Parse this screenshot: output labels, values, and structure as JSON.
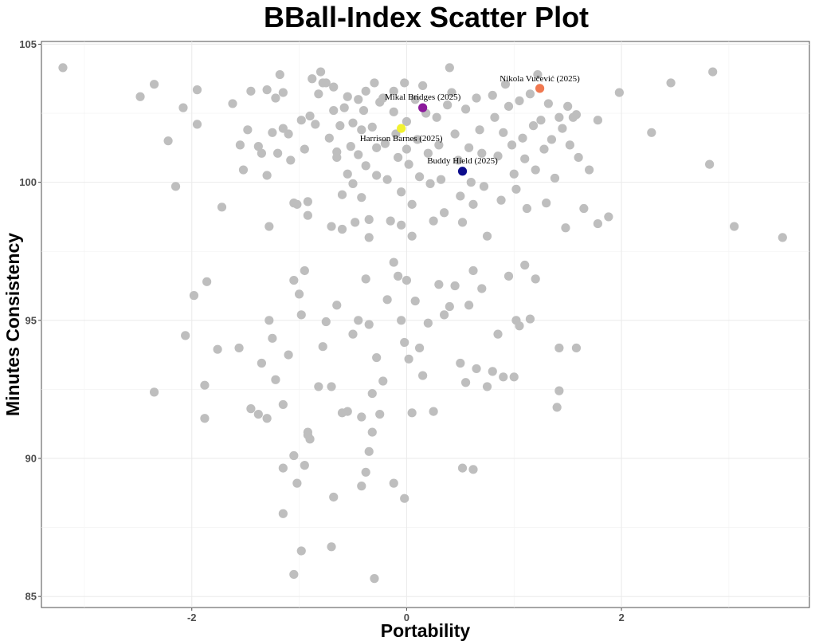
{
  "chart_data": {
    "type": "scatter",
    "title": "BBall-Index Scatter Plot",
    "xlabel": "Portability",
    "ylabel": "Minutes Consistency",
    "xlim": [
      -3.4,
      3.75
    ],
    "ylim": [
      84.6,
      105.1
    ],
    "xticks": [
      -2,
      0,
      2
    ],
    "yticks": [
      85,
      90,
      95,
      100,
      105
    ],
    "grid": true,
    "legend": "none",
    "highlighted": [
      {
        "label": "Nikola Vučević (2025)",
        "x": 1.24,
        "y": 103.4,
        "color": "#f07850"
      },
      {
        "label": "Mikal Bridges (2025)",
        "x": 0.15,
        "y": 102.7,
        "color": "#8b1a9b"
      },
      {
        "label": "Harrison Barnes (2025)",
        "x": -0.05,
        "y": 101.95,
        "color": "#f2f230"
      },
      {
        "label": "Buddy Hield (2025)",
        "x": 0.52,
        "y": 100.4,
        "color": "#0d0d8c"
      }
    ],
    "points": [
      [
        -3.2,
        104.15
      ],
      [
        -2.48,
        103.1
      ],
      [
        -2.35,
        103.55
      ],
      [
        -2.22,
        101.5
      ],
      [
        -2.15,
        99.85
      ],
      [
        -2.08,
        102.7
      ],
      [
        -1.95,
        103.35
      ],
      [
        -1.95,
        102.1
      ],
      [
        -1.72,
        99.1
      ],
      [
        -1.62,
        102.85
      ],
      [
        -1.55,
        101.35
      ],
      [
        -1.52,
        100.45
      ],
      [
        -1.48,
        101.9
      ],
      [
        -1.45,
        103.3
      ],
      [
        -1.38,
        101.3
      ],
      [
        -1.35,
        101.05
      ],
      [
        -1.3,
        103.35
      ],
      [
        -1.3,
        100.25
      ],
      [
        -1.28,
        98.4
      ],
      [
        -1.25,
        101.8
      ],
      [
        -1.22,
        103.05
      ],
      [
        -1.2,
        101.05
      ],
      [
        -1.18,
        103.9
      ],
      [
        -1.15,
        103.25
      ],
      [
        -1.15,
        101.95
      ],
      [
        -1.1,
        101.75
      ],
      [
        -1.08,
        100.8
      ],
      [
        -1.05,
        99.25
      ],
      [
        -1.02,
        99.2
      ],
      [
        -0.98,
        102.25
      ],
      [
        -0.95,
        101.2
      ],
      [
        -0.92,
        99.3
      ],
      [
        -0.92,
        98.8
      ],
      [
        -0.9,
        102.4
      ],
      [
        -0.88,
        103.75
      ],
      [
        -0.85,
        102.1
      ],
      [
        -0.82,
        103.2
      ],
      [
        -0.8,
        104.0
      ],
      [
        -0.78,
        103.6
      ],
      [
        -0.75,
        103.6
      ],
      [
        -0.72,
        101.6
      ],
      [
        -0.7,
        98.4
      ],
      [
        -0.68,
        103.45
      ],
      [
        -0.68,
        102.6
      ],
      [
        -0.65,
        101.1
      ],
      [
        -0.65,
        100.9
      ],
      [
        -0.62,
        102.05
      ],
      [
        -0.6,
        99.55
      ],
      [
        -0.6,
        98.3
      ],
      [
        -0.58,
        102.7
      ],
      [
        -0.55,
        103.1
      ],
      [
        -0.55,
        100.3
      ],
      [
        -0.52,
        101.3
      ],
      [
        -0.5,
        102.15
      ],
      [
        -0.5,
        99.95
      ],
      [
        -0.48,
        98.55
      ],
      [
        -0.45,
        103.0
      ],
      [
        -0.45,
        101.0
      ],
      [
        -0.42,
        101.9
      ],
      [
        -0.42,
        99.45
      ],
      [
        -0.4,
        102.6
      ],
      [
        -0.38,
        103.3
      ],
      [
        -0.38,
        100.6
      ],
      [
        -0.35,
        98.65
      ],
      [
        -0.35,
        98.0
      ],
      [
        -0.32,
        102.0
      ],
      [
        -0.3,
        103.6
      ],
      [
        -0.28,
        101.25
      ],
      [
        -0.28,
        100.25
      ],
      [
        -0.25,
        102.9
      ],
      [
        -0.22,
        103.05
      ],
      [
        -0.2,
        101.4
      ],
      [
        -0.18,
        100.1
      ],
      [
        -0.15,
        98.6
      ],
      [
        -0.12,
        103.3
      ],
      [
        -0.12,
        102.55
      ],
      [
        -0.1,
        101.75
      ],
      [
        -0.08,
        100.9
      ],
      [
        -0.05,
        99.65
      ],
      [
        -0.05,
        98.45
      ],
      [
        -0.02,
        103.6
      ],
      [
        0.0,
        102.2
      ],
      [
        0.0,
        101.2
      ],
      [
        0.02,
        100.65
      ],
      [
        0.05,
        99.2
      ],
      [
        0.05,
        98.05
      ],
      [
        0.08,
        103.0
      ],
      [
        0.1,
        101.55
      ],
      [
        0.12,
        100.2
      ],
      [
        0.15,
        103.5
      ],
      [
        0.18,
        102.5
      ],
      [
        0.2,
        101.05
      ],
      [
        0.22,
        99.95
      ],
      [
        0.25,
        98.6
      ],
      [
        0.28,
        102.35
      ],
      [
        0.3,
        101.35
      ],
      [
        0.32,
        100.1
      ],
      [
        0.35,
        98.9
      ],
      [
        0.38,
        102.8
      ],
      [
        0.4,
        104.15
      ],
      [
        0.42,
        103.25
      ],
      [
        0.45,
        101.75
      ],
      [
        0.48,
        100.8
      ],
      [
        0.5,
        99.5
      ],
      [
        0.52,
        98.55
      ],
      [
        0.55,
        102.65
      ],
      [
        0.58,
        101.25
      ],
      [
        0.6,
        100.0
      ],
      [
        0.62,
        99.2
      ],
      [
        0.65,
        103.05
      ],
      [
        0.68,
        101.9
      ],
      [
        0.7,
        101.05
      ],
      [
        0.72,
        99.85
      ],
      [
        0.75,
        98.05
      ],
      [
        0.8,
        103.15
      ],
      [
        0.82,
        102.35
      ],
      [
        0.85,
        100.95
      ],
      [
        0.88,
        99.35
      ],
      [
        0.9,
        101.8
      ],
      [
        0.92,
        103.55
      ],
      [
        0.95,
        102.75
      ],
      [
        0.98,
        101.35
      ],
      [
        1.0,
        100.3
      ],
      [
        1.02,
        99.75
      ],
      [
        1.05,
        102.95
      ],
      [
        1.08,
        101.6
      ],
      [
        1.1,
        100.85
      ],
      [
        1.12,
        99.05
      ],
      [
        1.15,
        103.2
      ],
      [
        1.18,
        102.05
      ],
      [
        1.2,
        100.45
      ],
      [
        1.22,
        103.9
      ],
      [
        1.25,
        102.25
      ],
      [
        1.28,
        101.2
      ],
      [
        1.3,
        99.25
      ],
      [
        1.32,
        102.85
      ],
      [
        1.35,
        101.55
      ],
      [
        1.38,
        100.15
      ],
      [
        1.42,
        102.35
      ],
      [
        1.45,
        101.95
      ],
      [
        1.48,
        98.35
      ],
      [
        1.5,
        102.75
      ],
      [
        1.52,
        101.35
      ],
      [
        1.55,
        102.35
      ],
      [
        1.58,
        102.45
      ],
      [
        1.6,
        100.9
      ],
      [
        1.65,
        99.05
      ],
      [
        1.7,
        100.45
      ],
      [
        1.78,
        102.25
      ],
      [
        1.78,
        98.5
      ],
      [
        1.88,
        98.75
      ],
      [
        1.98,
        103.25
      ],
      [
        2.28,
        101.8
      ],
      [
        2.46,
        103.6
      ],
      [
        2.82,
        100.65
      ],
      [
        2.85,
        104.0
      ],
      [
        3.05,
        98.4
      ],
      [
        3.5,
        98.0
      ],
      [
        -1.98,
        95.9
      ],
      [
        -1.86,
        96.4
      ],
      [
        -2.06,
        94.45
      ],
      [
        -1.76,
        93.95
      ],
      [
        -1.56,
        94.0
      ],
      [
        -1.88,
        92.65
      ],
      [
        -2.35,
        92.4
      ],
      [
        -1.88,
        91.45
      ],
      [
        -1.35,
        93.45
      ],
      [
        -1.28,
        95.0
      ],
      [
        -1.25,
        94.35
      ],
      [
        -1.22,
        92.85
      ],
      [
        -1.15,
        91.95
      ],
      [
        -1.1,
        93.75
      ],
      [
        -1.05,
        96.45
      ],
      [
        -1.0,
        95.95
      ],
      [
        -0.98,
        95.2
      ],
      [
        -0.95,
        96.8
      ],
      [
        -0.92,
        90.85
      ],
      [
        -0.9,
        90.7
      ],
      [
        -0.82,
        92.6
      ],
      [
        -0.78,
        94.05
      ],
      [
        -0.75,
        94.95
      ],
      [
        -0.7,
        92.6
      ],
      [
        -0.65,
        95.55
      ],
      [
        -0.6,
        91.65
      ],
      [
        -0.5,
        94.5
      ],
      [
        -0.45,
        95.0
      ],
      [
        -0.42,
        91.5
      ],
      [
        -0.38,
        96.5
      ],
      [
        -0.35,
        94.85
      ],
      [
        -0.32,
        92.35
      ],
      [
        -0.28,
        93.65
      ],
      [
        -0.25,
        91.6
      ],
      [
        -0.22,
        92.8
      ],
      [
        -0.18,
        95.75
      ],
      [
        -0.12,
        97.1
      ],
      [
        -0.08,
        96.6
      ],
      [
        -0.05,
        95.0
      ],
      [
        -0.02,
        94.2
      ],
      [
        0.0,
        96.45
      ],
      [
        0.02,
        93.6
      ],
      [
        0.05,
        91.65
      ],
      [
        0.08,
        95.7
      ],
      [
        0.12,
        94.0
      ],
      [
        0.15,
        93.0
      ],
      [
        0.2,
        94.9
      ],
      [
        0.25,
        91.7
      ],
      [
        0.3,
        96.3
      ],
      [
        0.35,
        95.2
      ],
      [
        0.4,
        95.5
      ],
      [
        0.45,
        96.25
      ],
      [
        0.5,
        93.45
      ],
      [
        0.55,
        92.75
      ],
      [
        0.58,
        95.55
      ],
      [
        0.62,
        96.8
      ],
      [
        0.65,
        93.25
      ],
      [
        0.7,
        96.15
      ],
      [
        0.75,
        92.6
      ],
      [
        0.8,
        93.15
      ],
      [
        0.85,
        94.5
      ],
      [
        0.9,
        92.95
      ],
      [
        0.95,
        96.6
      ],
      [
        1.0,
        92.95
      ],
      [
        1.02,
        95.0
      ],
      [
        1.05,
        94.8
      ],
      [
        1.1,
        97.0
      ],
      [
        1.15,
        95.05
      ],
      [
        1.2,
        96.5
      ],
      [
        1.42,
        94.0
      ],
      [
        1.42,
        92.45
      ],
      [
        1.4,
        91.85
      ],
      [
        1.58,
        94.0
      ],
      [
        -1.45,
        91.8
      ],
      [
        -1.38,
        91.6
      ],
      [
        -1.3,
        91.45
      ],
      [
        -1.15,
        89.65
      ],
      [
        -1.05,
        90.1
      ],
      [
        -1.02,
        89.1
      ],
      [
        -0.95,
        89.75
      ],
      [
        -0.92,
        90.95
      ],
      [
        -0.68,
        88.6
      ],
      [
        -0.55,
        91.7
      ],
      [
        -0.42,
        89.0
      ],
      [
        -0.38,
        89.5
      ],
      [
        -0.35,
        90.25
      ],
      [
        -0.32,
        90.95
      ],
      [
        -0.12,
        89.1
      ],
      [
        -0.02,
        88.55
      ],
      [
        0.52,
        89.65
      ],
      [
        0.62,
        89.6
      ],
      [
        -1.15,
        88.0
      ],
      [
        -0.98,
        86.65
      ],
      [
        -0.7,
        86.8
      ],
      [
        -1.05,
        85.8
      ],
      [
        -0.3,
        85.65
      ]
    ]
  }
}
